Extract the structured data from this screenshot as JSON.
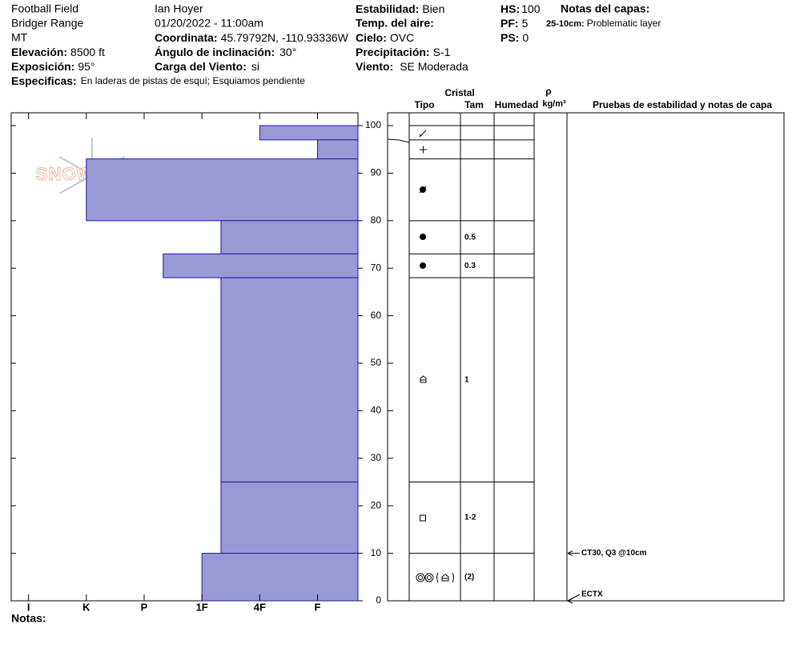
{
  "header": {
    "site": "Football Field",
    "range": "Bridger Range",
    "state": "MT",
    "observer": "Ian Hoyer",
    "datetime": "01/20/2022 - 11:00am",
    "elevation": {
      "label": "Elevación:",
      "value": "8500 ft"
    },
    "aspect": {
      "label": "Exposición:",
      "value": "95°"
    },
    "specifics": {
      "label": "Especificas:",
      "value": "En laderas de pistas de esquí; Esquiamos pendiente"
    },
    "coordinates": {
      "label": "Coordinata:",
      "value": "45.79792N, -110.93336W"
    },
    "slope": {
      "label": "Ángulo de inclinación:",
      "value": "30°"
    },
    "wind_loading": {
      "label": "Carga del Viento:",
      "value": "si"
    },
    "stability": {
      "label": "Estabilidad:",
      "value": "Bien"
    },
    "air_temp": {
      "label": "Temp. del aire:"
    },
    "sky": {
      "label": "Cielo:",
      "value": "OVC"
    },
    "precipitation": {
      "label": "Precipitación:",
      "value": "S-1"
    },
    "wind": {
      "label": "Viento:",
      "value": "SE Moderada"
    },
    "hs": {
      "label": "HS:",
      "value": 100
    },
    "pf": {
      "label": "PF:",
      "value": 5
    },
    "ps": {
      "label": "PS:",
      "value": 0
    },
    "layer_notes": {
      "title": "Notas del capas:",
      "range": "25-10cm:",
      "note": "Problematic layer"
    }
  },
  "logo": "SNOWPILOT",
  "columns": {
    "crystal": "Cristal",
    "type": "Tipo",
    "size": "Tam",
    "moisture": "Humedad",
    "density": "ρ",
    "density_unit": "kg/m³",
    "tests": "Pruebas de estabilidad y notas de capa"
  },
  "notes_label": "Notas:",
  "chart_data": {
    "type": "hardness-profile",
    "color": "#9999d6",
    "xlim": [
      6.3,
      0.3
    ],
    "xticks": [
      {
        "value": 6,
        "label": "I"
      },
      {
        "value": 5,
        "label": "K"
      },
      {
        "value": 4,
        "label": "P"
      },
      {
        "value": 3,
        "label": "1F"
      },
      {
        "value": 2,
        "label": "4F"
      },
      {
        "value": 1,
        "label": "F"
      }
    ],
    "ylim": [
      0,
      102.7
    ],
    "yticks": [
      0,
      10,
      20,
      30,
      40,
      50,
      60,
      70,
      80,
      90,
      100
    ],
    "layers": [
      {
        "bottom": 97,
        "top": 100,
        "hardness": 2
      },
      {
        "bottom": 93,
        "top": 97,
        "hardness": 1
      },
      {
        "bottom": 80,
        "top": 93,
        "hardness": 5
      },
      {
        "bottom": 73,
        "top": 80,
        "hardness": 2.67,
        "size": "0.5"
      },
      {
        "bottom": 68,
        "top": 73,
        "hardness": 3.67,
        "size": "0.3"
      },
      {
        "bottom": 25,
        "top": 68,
        "hardness": 2.67,
        "size": "1"
      },
      {
        "bottom": 10,
        "top": 25,
        "hardness": 2.67,
        "size": "1-2"
      },
      {
        "bottom": 0,
        "top": 10,
        "hardness": 3,
        "size": "(2)"
      }
    ],
    "tests": [
      {
        "label": "CT30, Q3 @10cm",
        "height": 10
      },
      {
        "label": "ECTX",
        "height": 0
      }
    ]
  }
}
